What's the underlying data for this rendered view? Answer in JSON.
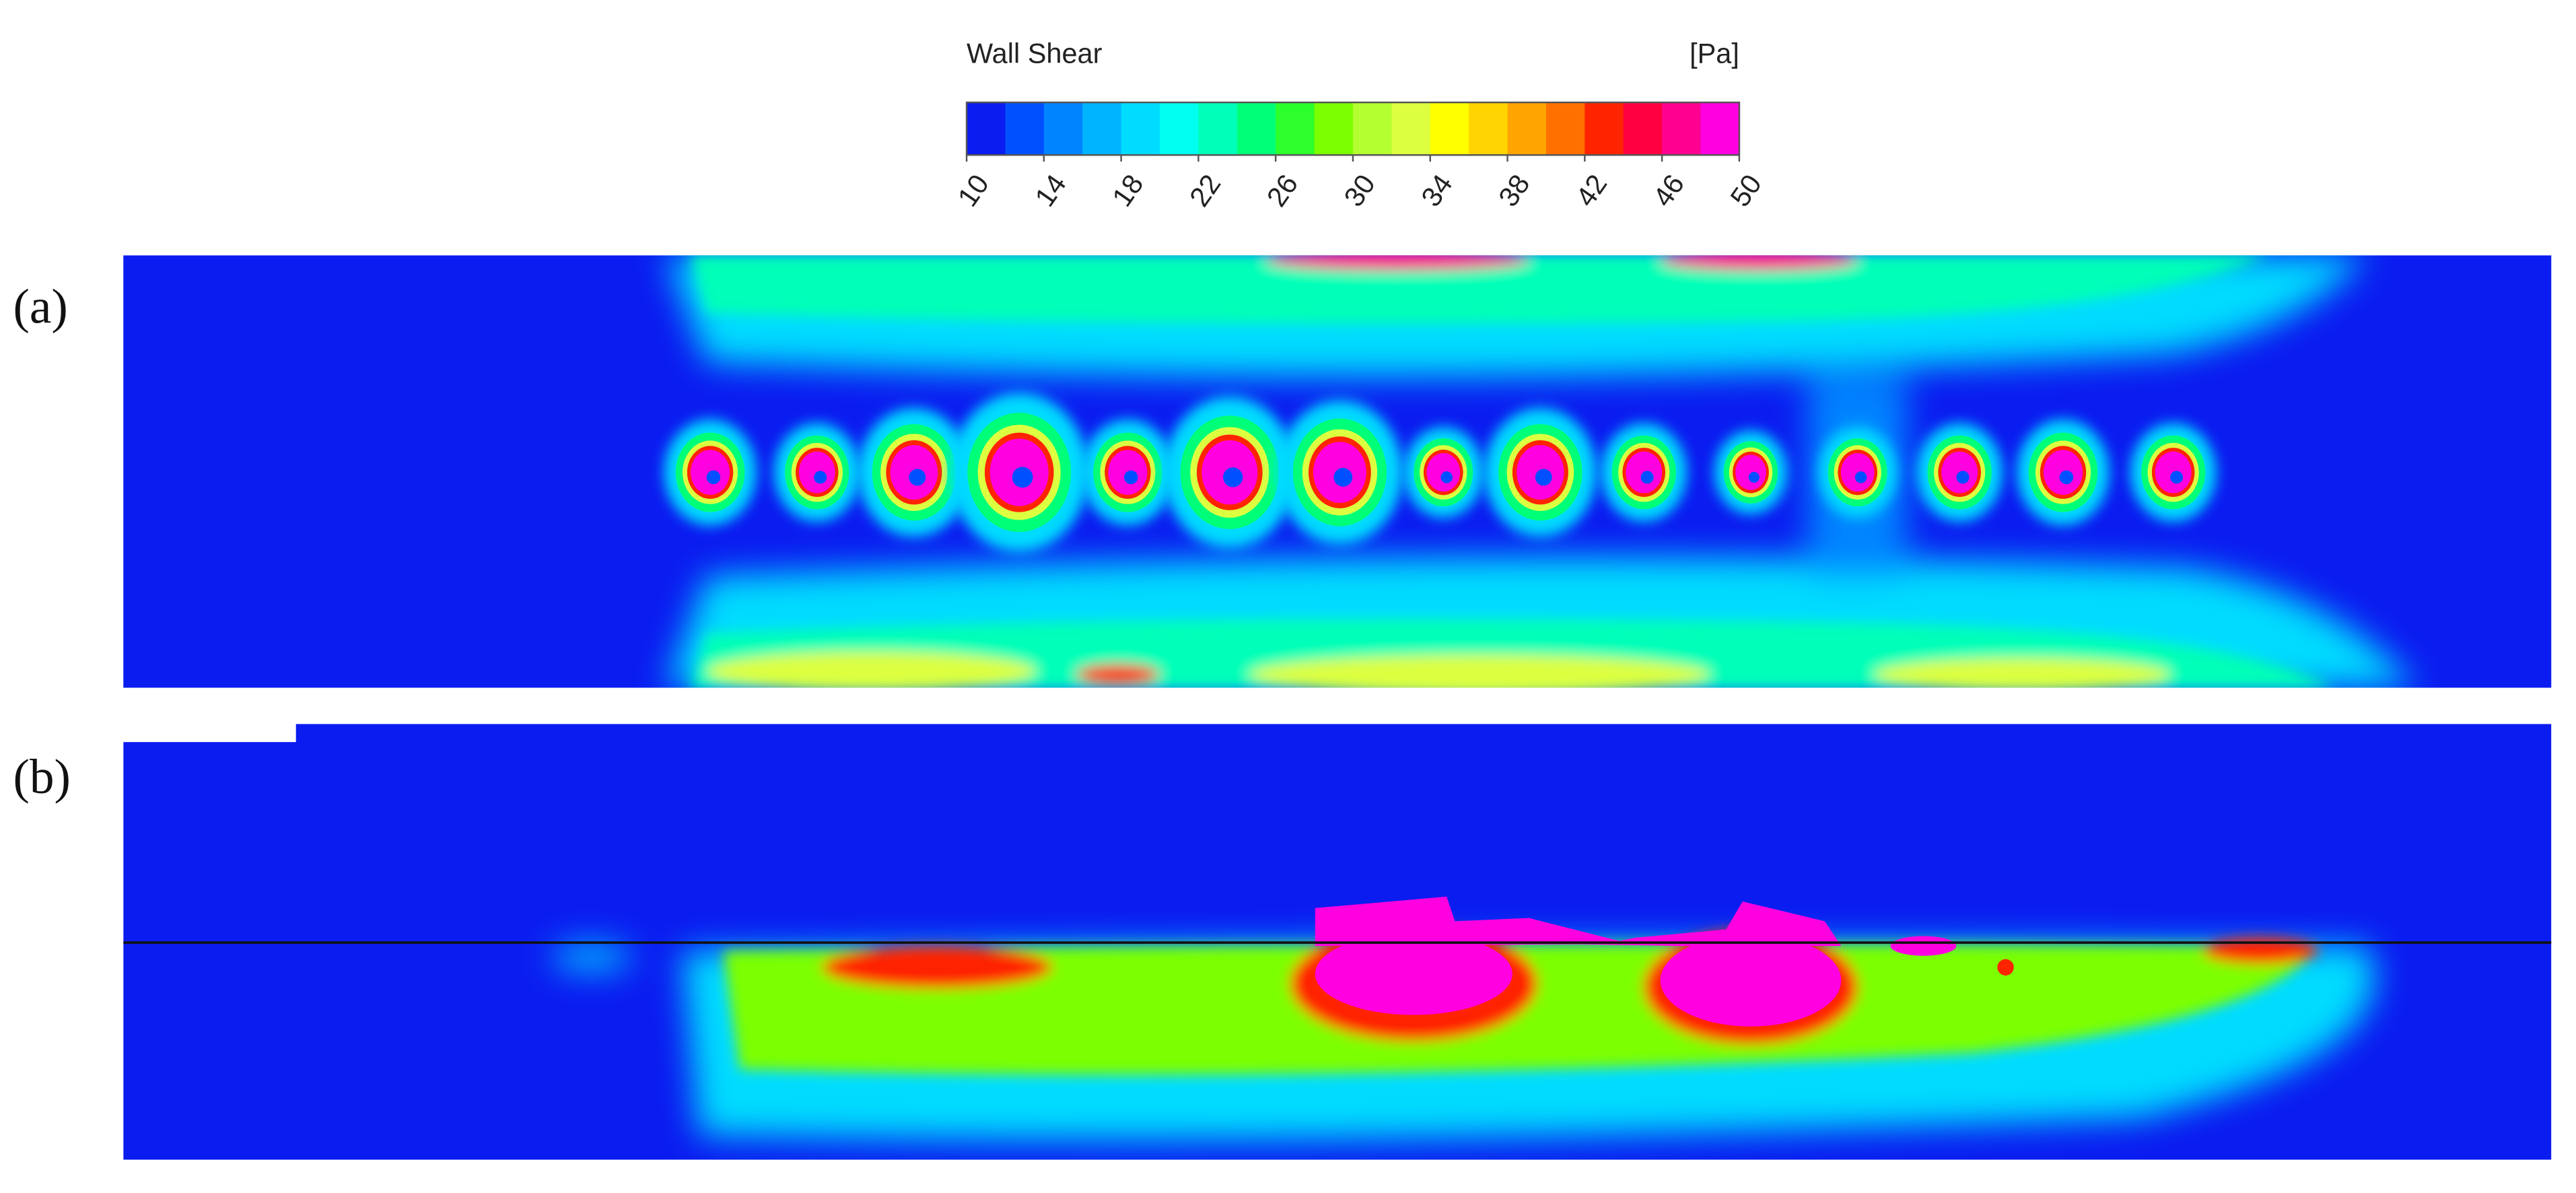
{
  "colorbar": {
    "title": "Wall Shear",
    "unit": "[Pa]",
    "ticks": [
      10,
      14,
      18,
      22,
      26,
      30,
      34,
      38,
      42,
      46,
      50
    ],
    "colors": [
      "#0a1cf0",
      "#0050ff",
      "#0084ff",
      "#00b4ff",
      "#00dcff",
      "#00fff0",
      "#00ffb8",
      "#00ff78",
      "#2cff2c",
      "#7cff00",
      "#b4ff30",
      "#dcff40",
      "#ffff00",
      "#ffd400",
      "#ffa400",
      "#ff7000",
      "#ff2400",
      "#ff0040",
      "#ff0090",
      "#ff00e0"
    ]
  },
  "panels": [
    {
      "label": "(a)"
    },
    {
      "label": "(b)"
    }
  ]
}
